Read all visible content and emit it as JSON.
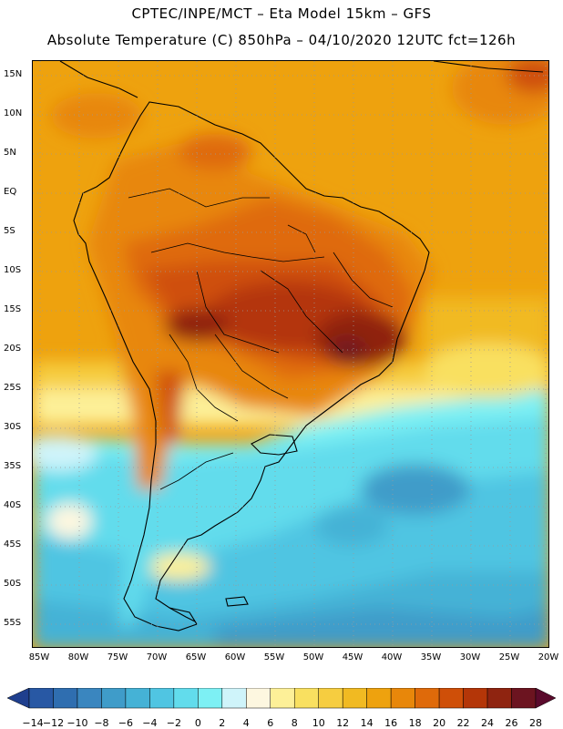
{
  "header": {
    "line1": "CPTEC/INPE/MCT –  Eta Model 15km – GFS",
    "line2": "Absolute Temperature (C) 850hPa – 04/10/2020 12UTC fct=126h"
  },
  "map": {
    "lat_labels": [
      "15N",
      "10N",
      "5N",
      "EQ",
      "5S",
      "10S",
      "15S",
      "20S",
      "25S",
      "30S",
      "35S",
      "40S",
      "45S",
      "50S",
      "55S"
    ],
    "lon_labels": [
      "85W",
      "80W",
      "75W",
      "70W",
      "65W",
      "60W",
      "55W",
      "50W",
      "45W",
      "40W",
      "35W",
      "30W",
      "25W",
      "20W"
    ]
  },
  "colorbar": {
    "labels": [
      "-14",
      "-12",
      "-10",
      "-8",
      "-6",
      "-4",
      "-2",
      "0",
      "2",
      "4",
      "6",
      "8",
      "10",
      "12",
      "14",
      "16",
      "18",
      "20",
      "22",
      "24",
      "26",
      "28"
    ],
    "colors": [
      "#1f3f8e",
      "#2858a4",
      "#2f6eb0",
      "#3a86bf",
      "#3f9cc9",
      "#45b2d6",
      "#50c5e2",
      "#62dcec",
      "#7df0f4",
      "#cff4fa",
      "#fdf7e0",
      "#fdf098",
      "#f9e060",
      "#f6cd40",
      "#f1ba22",
      "#eea20e",
      "#e8870a",
      "#df6a0a",
      "#cf4f08",
      "#b43608",
      "#8f2410",
      "#6c1420",
      "#5a0a2c"
    ]
  }
}
